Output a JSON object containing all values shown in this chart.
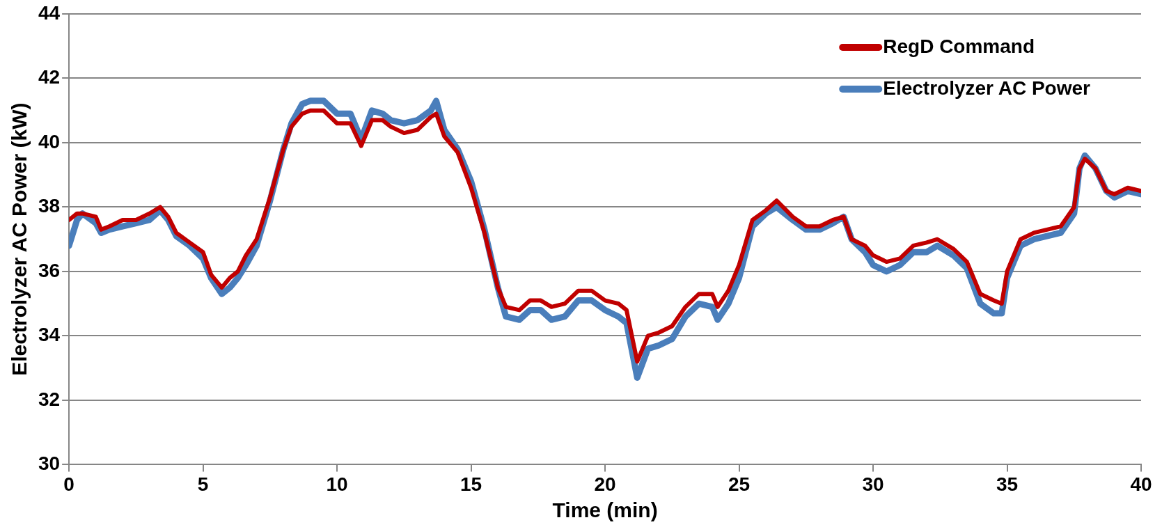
{
  "chart_data": {
    "type": "line",
    "xlabel": "Time (min)",
    "ylabel": "Electrolyzer AC Power (kW)",
    "xlim": [
      0,
      40
    ],
    "xticks": [
      0,
      5,
      10,
      15,
      20,
      25,
      30,
      35,
      40
    ],
    "ylim": [
      30,
      44
    ],
    "yticks": [
      30,
      32,
      34,
      36,
      38,
      40,
      42,
      44
    ],
    "grid": "y",
    "legend": "top right",
    "marker": "none",
    "line_style": "solid",
    "series": [
      {
        "name": "RegD Command",
        "color": "#c00000",
        "x": [
          0,
          0.3,
          0.5,
          1,
          1.2,
          1.5,
          2,
          2.5,
          3,
          3.4,
          3.7,
          4,
          4.5,
          5,
          5.3,
          5.7,
          6,
          6.3,
          6.6,
          7,
          7.5,
          8,
          8.3,
          8.7,
          9,
          9.5,
          10,
          10.5,
          10.9,
          11.3,
          11.7,
          12,
          12.5,
          13,
          13.5,
          13.7,
          14,
          14.5,
          15,
          15.5,
          16,
          16.3,
          16.8,
          17.2,
          17.6,
          18,
          18.5,
          19,
          19.5,
          20,
          20.5,
          20.8,
          21.2,
          21.6,
          22,
          22.5,
          23,
          23.5,
          24,
          24.2,
          24.6,
          25,
          25.5,
          26,
          26.4,
          27,
          27.5,
          28,
          28.5,
          28.9,
          29.2,
          29.7,
          30,
          30.5,
          31,
          31.5,
          32,
          32.4,
          33,
          33.5,
          34,
          34.5,
          34.8,
          35,
          35.5,
          36,
          37,
          37.5,
          37.7,
          37.9,
          38.3,
          38.7,
          39,
          39.5,
          40
        ],
        "values": [
          37.6,
          37.8,
          37.8,
          37.7,
          37.3,
          37.4,
          37.6,
          37.6,
          37.8,
          38.0,
          37.7,
          37.2,
          36.9,
          36.6,
          35.9,
          35.5,
          35.8,
          36.0,
          36.5,
          37.0,
          38.3,
          39.8,
          40.5,
          40.9,
          41.0,
          41.0,
          40.6,
          40.6,
          39.9,
          40.7,
          40.7,
          40.5,
          40.3,
          40.4,
          40.8,
          40.9,
          40.2,
          39.7,
          38.6,
          37.2,
          35.5,
          34.9,
          34.8,
          35.1,
          35.1,
          34.9,
          35.0,
          35.4,
          35.4,
          35.1,
          35.0,
          34.8,
          33.2,
          34.0,
          34.1,
          34.3,
          34.9,
          35.3,
          35.3,
          34.9,
          35.4,
          36.2,
          37.6,
          37.9,
          38.2,
          37.7,
          37.4,
          37.4,
          37.6,
          37.7,
          37.0,
          36.8,
          36.5,
          36.3,
          36.4,
          36.8,
          36.9,
          37.0,
          36.7,
          36.3,
          35.3,
          35.1,
          35.0,
          36.0,
          37.0,
          37.2,
          37.4,
          38.0,
          39.2,
          39.5,
          39.2,
          38.5,
          38.4,
          38.6,
          38.5
        ]
      },
      {
        "name": "Electrolyzer AC Power",
        "color": "#4a7ebb",
        "x": [
          0,
          0.3,
          0.5,
          1,
          1.2,
          1.5,
          2,
          2.5,
          3,
          3.4,
          3.7,
          4,
          4.5,
          5,
          5.3,
          5.7,
          6,
          6.3,
          6.6,
          7,
          7.5,
          8,
          8.3,
          8.7,
          9,
          9.5,
          10,
          10.5,
          10.9,
          11.3,
          11.7,
          12,
          12.5,
          13,
          13.5,
          13.7,
          14,
          14.5,
          15,
          15.5,
          16,
          16.3,
          16.8,
          17.2,
          17.6,
          18,
          18.5,
          19,
          19.5,
          20,
          20.5,
          20.8,
          21.2,
          21.6,
          22,
          22.5,
          23,
          23.5,
          24,
          24.2,
          24.6,
          25,
          25.5,
          26,
          26.4,
          27,
          27.5,
          28,
          28.5,
          28.9,
          29.2,
          29.7,
          30,
          30.5,
          31,
          31.5,
          32,
          32.4,
          33,
          33.5,
          34,
          34.5,
          34.8,
          35,
          35.5,
          36,
          37,
          37.5,
          37.7,
          37.9,
          38.3,
          38.7,
          39,
          39.5,
          40
        ],
        "values": [
          36.8,
          37.6,
          37.8,
          37.5,
          37.2,
          37.3,
          37.4,
          37.5,
          37.6,
          37.9,
          37.6,
          37.1,
          36.8,
          36.4,
          35.8,
          35.3,
          35.5,
          35.8,
          36.2,
          36.8,
          38.2,
          39.8,
          40.6,
          41.2,
          41.3,
          41.3,
          40.9,
          40.9,
          40.1,
          41.0,
          40.9,
          40.7,
          40.6,
          40.7,
          41.0,
          41.3,
          40.4,
          39.8,
          38.8,
          37.3,
          35.5,
          34.6,
          34.5,
          34.8,
          34.8,
          34.5,
          34.6,
          35.1,
          35.1,
          34.8,
          34.6,
          34.4,
          32.7,
          33.6,
          33.7,
          33.9,
          34.6,
          35.0,
          34.9,
          34.5,
          35.0,
          35.8,
          37.4,
          37.8,
          38.0,
          37.6,
          37.3,
          37.3,
          37.5,
          37.7,
          37.0,
          36.6,
          36.2,
          36.0,
          36.2,
          36.6,
          36.6,
          36.8,
          36.5,
          36.1,
          35.0,
          34.7,
          34.7,
          35.8,
          36.8,
          37.0,
          37.2,
          37.8,
          39.2,
          39.6,
          39.2,
          38.5,
          38.3,
          38.5,
          38.4
        ]
      }
    ]
  }
}
